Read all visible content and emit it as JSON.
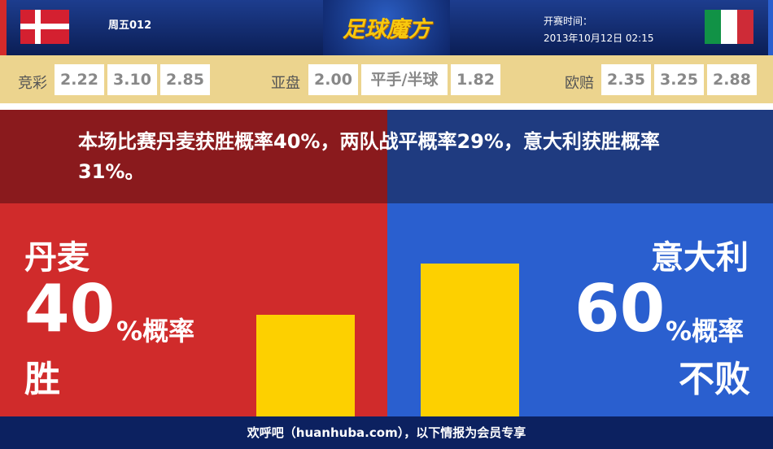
{
  "header": {
    "match_no": "周五012",
    "logo": "足球魔方",
    "kickoff_label": "开赛时间：",
    "kickoff_time": "2013年10月12日 02:15",
    "home_flag": "denmark-flag",
    "away_flag": "italy-flag"
  },
  "odds": {
    "jingcai": {
      "label": "竞彩",
      "values": [
        "2.22",
        "3.10",
        "2.85"
      ]
    },
    "yapan": {
      "label": "亚盘",
      "values": [
        "2.00",
        "平手/半球",
        "1.82"
      ]
    },
    "oupei": {
      "label": "欧赔",
      "values": [
        "2.35",
        "3.25",
        "2.88"
      ]
    }
  },
  "summary": "本场比赛丹麦获胜概率40%，两队战平概率29%，意大利获胜概率31%。",
  "home": {
    "team": "丹麦",
    "percent": "40",
    "suffix": "%概率",
    "outcome": "胜",
    "bar_value": 40,
    "color": "#d02b2b"
  },
  "away": {
    "team": "意大利",
    "percent": "60",
    "suffix": "%概率",
    "outcome": "不败",
    "bar_value": 60,
    "color": "#2a5fcf"
  },
  "bar_color": "#fdd000",
  "footer": "欢呼吧（huanhuba.com），以下情报为会员专享"
}
